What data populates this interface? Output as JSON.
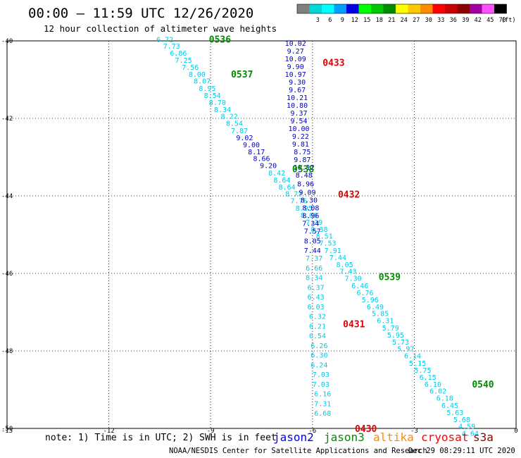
{
  "header": {
    "title": "00:00 – 11:59 UTC 12/26/2020",
    "subtitle": "12 hour collection of altimeter wave heights"
  },
  "color_scale": {
    "unit": "(ft)",
    "bins": [
      {
        "label": "",
        "color": "#808080"
      },
      {
        "label": "3",
        "color": "#00d8d8"
      },
      {
        "label": "6",
        "color": "#00ffff"
      },
      {
        "label": "9",
        "color": "#00a0ff"
      },
      {
        "label": "12",
        "color": "#0000e6"
      },
      {
        "label": "15",
        "color": "#00ff00"
      },
      {
        "label": "18",
        "color": "#00c800"
      },
      {
        "label": "21",
        "color": "#008c00"
      },
      {
        "label": "24",
        "color": "#ffff00"
      },
      {
        "label": "27",
        "color": "#ffc800"
      },
      {
        "label": "30",
        "color": "#ff8c00"
      },
      {
        "label": "33",
        "color": "#ff0000"
      },
      {
        "label": "36",
        "color": "#c80000"
      },
      {
        "label": "39",
        "color": "#8c0000"
      },
      {
        "label": "42",
        "color": "#a000a0"
      },
      {
        "label": "45",
        "color": "#ff50ff"
      },
      {
        "label": "70",
        "color": "#000000"
      }
    ]
  },
  "colors": {
    "grid": "#000000",
    "cyan_obs": "#00c8e6",
    "blue_obs": "#0000c0",
    "jason2": "#0000ff",
    "jason3": "#008c00",
    "altika": "#ff8c00",
    "cryosat": "#ff0000",
    "s3a": "#8c0000"
  },
  "note": "note:  1) Time is in UTC; 2) SWH is in feet",
  "satellites": [
    {
      "name": "jason2",
      "color": "#0000ff"
    },
    {
      "name": "jason3",
      "color": "#008c00"
    },
    {
      "name": "altika",
      "color": "#ff8c00"
    },
    {
      "name": "cryosat",
      "color": "#ff0000"
    },
    {
      "name": "s3a",
      "color": "#8c0000"
    }
  ],
  "footer": {
    "credit": "NOAA/NESDIS Center for Satellite Applications and Research",
    "timestamp": "Dec 29 08:29:11 UTC 2020"
  },
  "chart_data": {
    "type": "scatter",
    "xlim": [
      -15,
      0
    ],
    "ylim": [
      -50,
      -40
    ],
    "x_ticks": [
      -15,
      -12,
      -9,
      -6,
      -3,
      0
    ],
    "y_ticks": [
      -40,
      -42,
      -44,
      -46,
      -48,
      -50
    ],
    "grid": true,
    "series": [
      {
        "name": "0536",
        "color": "#00c8e6",
        "points": [
          {
            "x": -10.35,
            "y": -39.95,
            "v": "6.72"
          },
          {
            "x": -10.15,
            "y": -40.13,
            "v": "7.73"
          },
          {
            "x": -9.95,
            "y": -40.31,
            "v": "6.86"
          },
          {
            "x": -9.8,
            "y": -40.49,
            "v": "7.25"
          },
          {
            "x": -9.6,
            "y": -40.67,
            "v": "7.56"
          },
          {
            "x": -9.4,
            "y": -40.85,
            "v": "8.00"
          },
          {
            "x": -9.25,
            "y": -41.03,
            "v": "8.07"
          },
          {
            "x": -9.1,
            "y": -41.22,
            "v": "8.95"
          },
          {
            "x": -8.95,
            "y": -41.4,
            "v": "8.54"
          },
          {
            "x": -8.8,
            "y": -41.58,
            "v": "8.70"
          },
          {
            "x": -8.65,
            "y": -41.76,
            "v": "8.34"
          },
          {
            "x": -8.45,
            "y": -41.94,
            "v": "8.22"
          },
          {
            "x": -8.3,
            "y": -42.12,
            "v": "8.54"
          },
          {
            "x": -8.15,
            "y": -42.31,
            "v": "7.87"
          }
        ]
      },
      {
        "name": "0537",
        "color": "#0000c0",
        "points": [
          {
            "x": -8.0,
            "y": -42.49,
            "v": "9.02"
          },
          {
            "x": -7.8,
            "y": -42.67,
            "v": "9.00"
          },
          {
            "x": -7.65,
            "y": -42.85,
            "v": "8.17"
          },
          {
            "x": -7.5,
            "y": -43.03,
            "v": "8.66"
          },
          {
            "x": -7.3,
            "y": -43.21,
            "v": "9.20"
          }
        ]
      },
      {
        "name": "0538",
        "color": "#00c8e6",
        "points": [
          {
            "x": -7.05,
            "y": -43.4,
            "v": "8.42"
          },
          {
            "x": -6.9,
            "y": -43.58,
            "v": "8.64"
          },
          {
            "x": -6.75,
            "y": -43.76,
            "v": "8.64"
          },
          {
            "x": -6.55,
            "y": -43.94,
            "v": "8.72"
          },
          {
            "x": -6.4,
            "y": -44.12,
            "v": "7.76"
          },
          {
            "x": -6.25,
            "y": -44.31,
            "v": "8.95"
          },
          {
            "x": -6.1,
            "y": -44.49,
            "v": "8.06"
          },
          {
            "x": -5.95,
            "y": -44.67,
            "v": "7.39"
          },
          {
            "x": -5.8,
            "y": -44.85,
            "v": "8.38"
          },
          {
            "x": -5.65,
            "y": -45.03,
            "v": "8.51"
          },
          {
            "x": -5.55,
            "y": -45.21,
            "v": "7.53"
          },
          {
            "x": -5.4,
            "y": -45.4,
            "v": "7.91"
          },
          {
            "x": -5.25,
            "y": -45.58,
            "v": "7.44"
          },
          {
            "x": -5.05,
            "y": -45.76,
            "v": "8.05"
          }
        ]
      },
      {
        "name": "0539",
        "color": "#00c8e6",
        "points": [
          {
            "x": -4.95,
            "y": -45.94,
            "v": "7.43"
          },
          {
            "x": -4.8,
            "y": -46.12,
            "v": "7.30"
          },
          {
            "x": -4.6,
            "y": -46.31,
            "v": "6.46"
          },
          {
            "x": -4.45,
            "y": -46.49,
            "v": "6.76"
          },
          {
            "x": -4.3,
            "y": -46.67,
            "v": "5.96"
          },
          {
            "x": -4.15,
            "y": -46.85,
            "v": "6.49"
          },
          {
            "x": -4.0,
            "y": -47.03,
            "v": "5.85"
          },
          {
            "x": -3.85,
            "y": -47.21,
            "v": "6.31"
          },
          {
            "x": -3.7,
            "y": -47.4,
            "v": "5.79"
          },
          {
            "x": -3.55,
            "y": -47.58,
            "v": "5.95"
          },
          {
            "x": -3.4,
            "y": -47.76,
            "v": "5.73"
          },
          {
            "x": -3.25,
            "y": -47.94,
            "v": "5.97"
          },
          {
            "x": -3.05,
            "y": -48.12,
            "v": "6.14"
          },
          {
            "x": -2.9,
            "y": -48.31,
            "v": "5.15"
          },
          {
            "x": -2.75,
            "y": -48.49,
            "v": "5.75"
          },
          {
            "x": -2.6,
            "y": -48.67,
            "v": "6.15"
          }
        ]
      },
      {
        "name": "0540",
        "color": "#00c8e6",
        "points": [
          {
            "x": -2.45,
            "y": -48.85,
            "v": "6.10"
          },
          {
            "x": -2.3,
            "y": -49.03,
            "v": "6.02"
          },
          {
            "x": -2.1,
            "y": -49.21,
            "v": "6.18"
          },
          {
            "x": -1.95,
            "y": -49.4,
            "v": "6.45"
          },
          {
            "x": -1.8,
            "y": -49.58,
            "v": "5.63"
          },
          {
            "x": -1.6,
            "y": -49.76,
            "v": "5.68"
          },
          {
            "x": -1.45,
            "y": -49.94,
            "v": "4.59"
          },
          {
            "x": -1.35,
            "y": -50.12,
            "v": "4.64"
          }
        ]
      },
      {
        "name": "0433",
        "color": "#0000c0",
        "points": [
          {
            "x": -6.5,
            "y": -40.05,
            "v": "10.02"
          },
          {
            "x": -6.5,
            "y": -40.25,
            "v": "9.27"
          },
          {
            "x": -6.5,
            "y": -40.45,
            "v": "10.09"
          },
          {
            "x": -6.5,
            "y": -40.65,
            "v": "9.90"
          },
          {
            "x": -6.5,
            "y": -40.85,
            "v": "10.97"
          },
          {
            "x": -6.45,
            "y": -41.05,
            "v": "9.30"
          },
          {
            "x": -6.45,
            "y": -41.25,
            "v": "9.67"
          },
          {
            "x": -6.45,
            "y": -41.45,
            "v": "10.21"
          },
          {
            "x": -6.45,
            "y": -41.65,
            "v": "10.80"
          },
          {
            "x": -6.4,
            "y": -41.85,
            "v": "9.37"
          },
          {
            "x": -6.4,
            "y": -42.05,
            "v": "9.54"
          },
          {
            "x": -6.4,
            "y": -42.25,
            "v": "10.00"
          },
          {
            "x": -6.35,
            "y": -42.45,
            "v": "9.22"
          },
          {
            "x": -6.35,
            "y": -42.65,
            "v": "9.81"
          },
          {
            "x": -6.3,
            "y": -42.85,
            "v": "8.75"
          },
          {
            "x": -6.3,
            "y": -43.05,
            "v": "9.87"
          },
          {
            "x": -6.25,
            "y": -43.25,
            "v": "10.12"
          },
          {
            "x": -6.25,
            "y": -43.45,
            "v": "8.48"
          }
        ]
      },
      {
        "name": "0432",
        "color": "#0000c0",
        "points": [
          {
            "x": -6.2,
            "y": -43.68,
            "v": "8.96"
          },
          {
            "x": -6.15,
            "y": -43.9,
            "v": "9.09"
          },
          {
            "x": -6.1,
            "y": -44.1,
            "v": "8.30"
          },
          {
            "x": -6.05,
            "y": -44.3,
            "v": "8.08"
          },
          {
            "x": -6.05,
            "y": -44.5,
            "v": "8.96"
          },
          {
            "x": -6.05,
            "y": -44.7,
            "v": "7.34"
          },
          {
            "x": -6.0,
            "y": -44.9,
            "v": "7.57"
          },
          {
            "x": -6.0,
            "y": -45.15,
            "v": "8.05"
          },
          {
            "x": -6.0,
            "y": -45.4,
            "v": "7.44"
          }
        ]
      },
      {
        "name": "0431",
        "color": "#00c8e6",
        "points": [
          {
            "x": -5.95,
            "y": -45.6,
            "v": "7.37"
          },
          {
            "x": -5.95,
            "y": -45.85,
            "v": "6.66"
          },
          {
            "x": -5.95,
            "y": -46.1,
            "v": "8.34"
          },
          {
            "x": -5.9,
            "y": -46.35,
            "v": "6.37"
          },
          {
            "x": -5.9,
            "y": -46.6,
            "v": "6.43"
          },
          {
            "x": -5.9,
            "y": -46.85,
            "v": "6.03"
          },
          {
            "x": -5.85,
            "y": -47.1,
            "v": "6.32"
          },
          {
            "x": -5.85,
            "y": -47.35,
            "v": "6.21"
          },
          {
            "x": -5.85,
            "y": -47.6,
            "v": "6.54"
          },
          {
            "x": -5.8,
            "y": -47.85,
            "v": "6.26"
          },
          {
            "x": -5.8,
            "y": -48.1,
            "v": "6.30"
          }
        ]
      },
      {
        "name": "0430",
        "color": "#00c8e6",
        "points": [
          {
            "x": -5.8,
            "y": -48.35,
            "v": "6.24"
          },
          {
            "x": -5.75,
            "y": -48.6,
            "v": "7.03"
          },
          {
            "x": -5.75,
            "y": -48.85,
            "v": "7.03"
          },
          {
            "x": -5.7,
            "y": -49.1,
            "v": "6.16"
          },
          {
            "x": -5.7,
            "y": -49.35,
            "v": "7.31"
          },
          {
            "x": -5.7,
            "y": -49.6,
            "v": "6.68"
          }
        ]
      }
    ],
    "pass_labels": [
      {
        "text": "0536",
        "x": -9.05,
        "y": -39.95,
        "color": "#008c00"
      },
      {
        "text": "0537",
        "x": -8.4,
        "y": -40.85,
        "color": "#008c00"
      },
      {
        "text": "0538",
        "x": -6.6,
        "y": -43.3,
        "color": "#008c00"
      },
      {
        "text": "0539",
        "x": -4.05,
        "y": -46.08,
        "color": "#008c00"
      },
      {
        "text": "0540",
        "x": -1.3,
        "y": -48.85,
        "color": "#008c00"
      },
      {
        "text": "0433",
        "x": -5.7,
        "y": -40.55,
        "color": "#e00000"
      },
      {
        "text": "0432",
        "x": -5.25,
        "y": -43.95,
        "color": "#e00000"
      },
      {
        "text": "0431",
        "x": -5.1,
        "y": -47.3,
        "color": "#e00000"
      },
      {
        "text": "0430",
        "x": -4.75,
        "y": -50.0,
        "color": "#e00000"
      }
    ]
  }
}
